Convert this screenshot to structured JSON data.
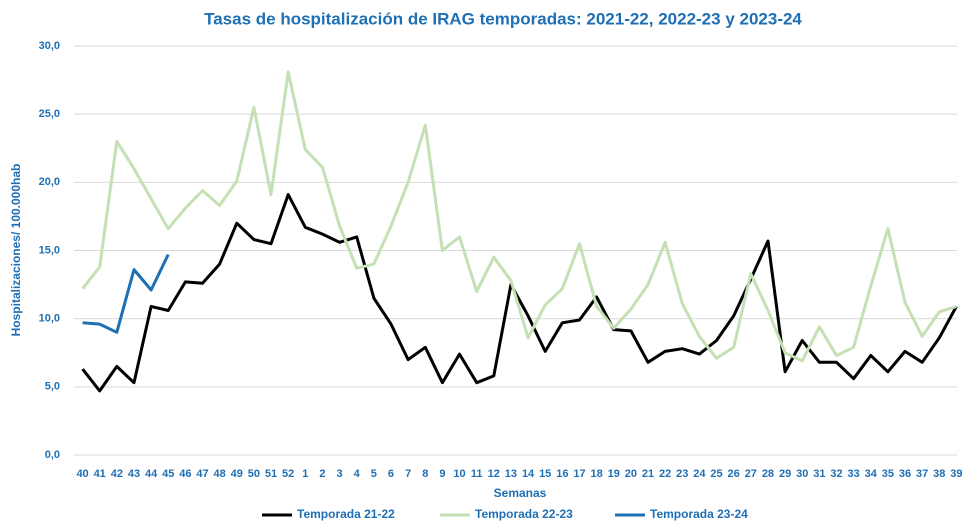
{
  "chart_data": {
    "type": "line",
    "title": "Tasas de hospitalización de IRAG temporadas: 2021-22, 2022-23 y 2023-24",
    "x_label": "Semanas",
    "y_label": "Hospitalizaciones/ 100.000hab",
    "categories": [
      "40",
      "41",
      "42",
      "43",
      "44",
      "45",
      "46",
      "47",
      "48",
      "49",
      "50",
      "51",
      "52",
      "1",
      "2",
      "3",
      "4",
      "5",
      "6",
      "7",
      "8",
      "9",
      "10",
      "11",
      "12",
      "13",
      "14",
      "15",
      "16",
      "17",
      "18",
      "19",
      "20",
      "21",
      "22",
      "23",
      "24",
      "25",
      "26",
      "27",
      "28",
      "29",
      "30",
      "31",
      "32",
      "33",
      "34",
      "35",
      "36",
      "37",
      "38",
      "39"
    ],
    "ylim": [
      0,
      30
    ],
    "yticks": [
      {
        "value": 0,
        "label": "0,0"
      },
      {
        "value": 5,
        "label": "5,0"
      },
      {
        "value": 10,
        "label": "10,0"
      },
      {
        "value": 15,
        "label": "15,0"
      },
      {
        "value": 20,
        "label": "20,0"
      },
      {
        "value": 25,
        "label": "25,0"
      },
      {
        "value": 30,
        "label": "30,0"
      }
    ],
    "grid": true,
    "legend": "bottom",
    "series": [
      {
        "name": "Temporada 21-22",
        "color": "#000000",
        "values": [
          6.3,
          4.7,
          6.5,
          5.3,
          10.9,
          10.6,
          12.7,
          12.6,
          14.0,
          17.0,
          15.8,
          15.5,
          19.1,
          16.7,
          16.2,
          15.6,
          16.0,
          11.5,
          9.6,
          7.0,
          7.9,
          5.3,
          7.4,
          5.3,
          5.8,
          12.5,
          10.2,
          7.6,
          9.7,
          9.9,
          11.6,
          9.2,
          9.1,
          6.8,
          7.6,
          7.8,
          7.4,
          8.4,
          10.2,
          12.9,
          15.7,
          6.1,
          8.4,
          6.8,
          6.8,
          5.6,
          7.3,
          6.1,
          7.6,
          6.8,
          8.6,
          10.9
        ]
      },
      {
        "name": "Temporada 22-23",
        "color": "#c5e0b4",
        "values": [
          12.2,
          13.8,
          23.0,
          21.0,
          18.8,
          16.6,
          18.1,
          19.4,
          18.3,
          20.1,
          25.5,
          19.1,
          28.1,
          22.4,
          21.1,
          16.8,
          13.7,
          14.0,
          16.8,
          20.0,
          24.2,
          15.0,
          16.0,
          12.0,
          14.5,
          12.8,
          8.6,
          11.0,
          12.2,
          15.5,
          10.9,
          9.3,
          10.7,
          12.5,
          15.6,
          11.1,
          8.7,
          7.1,
          7.9,
          13.3,
          10.6,
          7.5,
          6.9,
          9.4,
          7.3,
          7.9,
          12.4,
          16.6,
          11.2,
          8.7,
          10.5,
          10.9
        ]
      },
      {
        "name": "Temporada 23-24",
        "color": "#1f6fb5",
        "values": [
          9.7,
          9.6,
          9.0,
          13.6,
          12.1,
          14.7,
          null,
          null,
          null,
          null,
          null,
          null,
          null,
          null,
          null,
          null,
          null,
          null,
          null,
          null,
          null,
          null,
          null,
          null,
          null,
          null,
          null,
          null,
          null,
          null,
          null,
          null,
          null,
          null,
          null,
          null,
          null,
          null,
          null,
          null,
          null,
          null,
          null,
          null,
          null,
          null,
          null,
          null,
          null,
          null,
          null,
          null
        ]
      }
    ]
  }
}
